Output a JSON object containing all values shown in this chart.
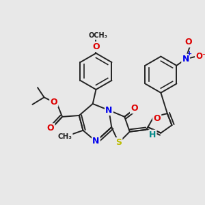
{
  "bg_color": "#e8e8e8",
  "bond_color": "#222222",
  "bond_width": 1.4,
  "atom_colors": {
    "O": "#dd0000",
    "N": "#0000ee",
    "S": "#bbbb00",
    "H": "#008888",
    "C": "#222222"
  },
  "fig_w": 3.0,
  "fig_h": 3.0,
  "dpi": 100,
  "xlim": [
    0,
    300
  ],
  "ylim": [
    0,
    300
  ]
}
